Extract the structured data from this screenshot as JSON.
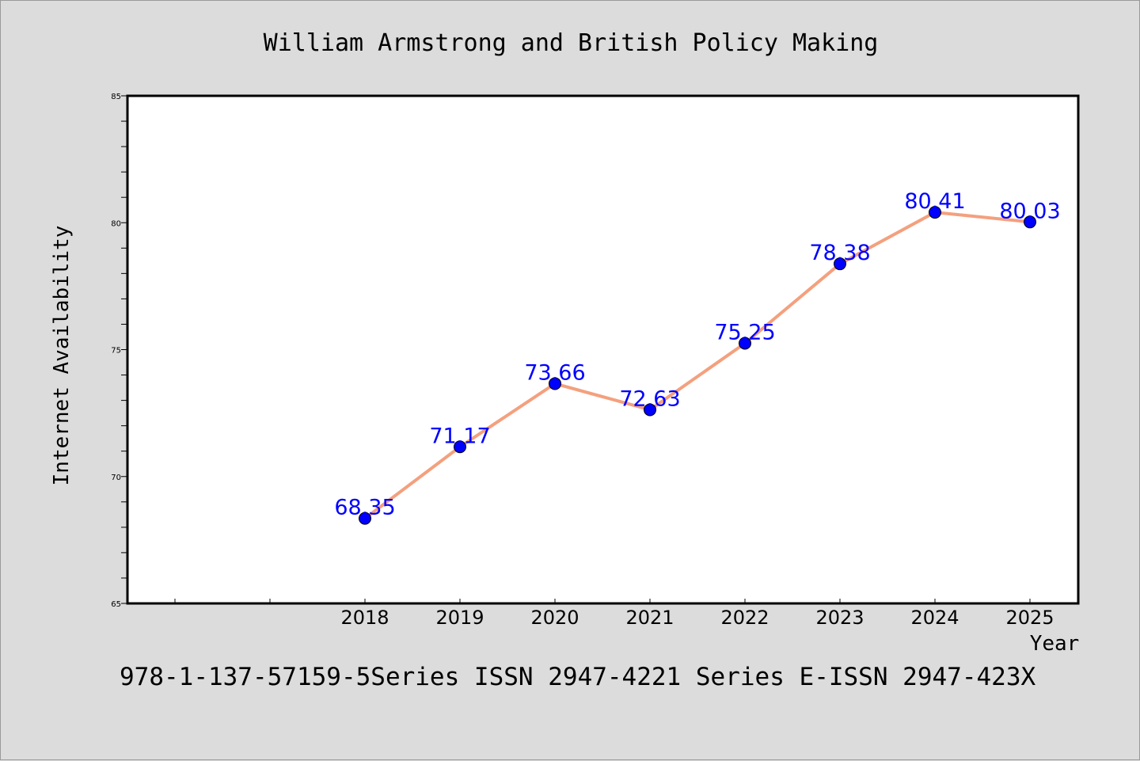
{
  "chart_data": {
    "type": "line",
    "title": "William Armstrong and British Policy Making",
    "xlabel": "Year",
    "ylabel": "Internet Availability",
    "categories": [
      "2018",
      "2019",
      "2020",
      "2021",
      "2022",
      "2023",
      "2024",
      "2025"
    ],
    "series": [
      {
        "values": [
          68.35,
          71.17,
          73.66,
          72.63,
          75.25,
          78.38,
          80.41,
          80.03
        ],
        "line_color": "#f4a07e",
        "marker_color": "#0000ff"
      }
    ],
    "data_labels": [
      "68.35",
      "71.17",
      "73.66",
      "72.63",
      "75.25",
      "78.38",
      "80.41",
      "80.03"
    ],
    "ylim": [
      65,
      85
    ],
    "yticks": [
      "65",
      "70",
      "75",
      "80",
      "85"
    ],
    "grid": false,
    "data_label_color": "#0000ff"
  },
  "footer": {
    "text": "978-1-137-57159-5Series ISSN 2947-4221 Series E-ISSN 2947-423X"
  }
}
